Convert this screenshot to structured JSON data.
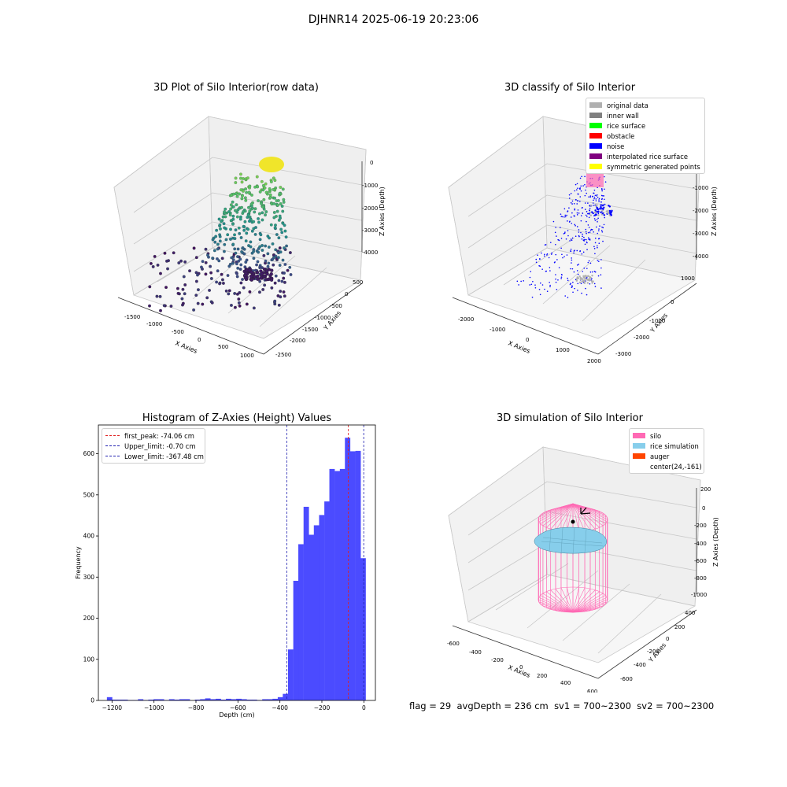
{
  "suptitle": "DJHNR14 2025-06-19 20:23:06",
  "status": {
    "flag_text": "flag = 29",
    "avg_depth_text": "avgDepth = 236 cm",
    "sv1_text": "sv1 = 700~2300",
    "sv2_text": "sv2 = 700~2300"
  },
  "colors": {
    "hist_bar": "#4b4bff",
    "peak_line": "#e02020",
    "limit_line": "#2020b0",
    "silo": "#ff69b4",
    "rice": "#87ceeb",
    "auger": "#ff4500"
  },
  "panel_raw": {
    "title": "3D Plot of Silo Interior(row data)",
    "xlabel": "X Axies",
    "ylabel": "Y Axies",
    "zlabel": "Z Axies (Depth)",
    "xticks": [
      "-1500",
      "-1000",
      "-500",
      "0",
      "500",
      "1000"
    ],
    "yticks": [
      "500",
      "0",
      "-500",
      "-1000",
      "-1500",
      "-2000",
      "-2500"
    ],
    "zticks": [
      "0",
      "-1000",
      "-2000",
      "-3000",
      "-4000"
    ]
  },
  "panel_classify": {
    "title": "3D classify of Silo Interior",
    "xlabel": "X Axies",
    "ylabel": "Y Axies",
    "zlabel": "Z Axies (Depth)",
    "xticks": [
      "-2000",
      "-1000",
      "0",
      "1000",
      "2000"
    ],
    "yticks": [
      "1000",
      "0",
      "-1000",
      "-2000",
      "-3000"
    ],
    "zticks": [
      "0",
      "-1000",
      "-2000",
      "-3000",
      "-4000"
    ],
    "legend": [
      {
        "label": "original data",
        "color": "#b0b0b0"
      },
      {
        "label": "inner wall",
        "color": "#808080"
      },
      {
        "label": "rice surface",
        "color": "#00ff00"
      },
      {
        "label": "obstacle",
        "color": "#ff0000"
      },
      {
        "label": "noise",
        "color": "#0000ff"
      },
      {
        "label": "interpolated rice surface",
        "color": "#800080"
      },
      {
        "label": "symmetric generated points",
        "color": "#ffff00"
      }
    ]
  },
  "panel_sim": {
    "title": "3D simulation of Silo Interior",
    "xlabel": "X Axies",
    "ylabel": "Y Axies",
    "zlabel": "Z Axies (Depth)",
    "xticks": [
      "-600",
      "-400",
      "-200",
      "0",
      "200",
      "400",
      "600"
    ],
    "yticks": [
      "400",
      "200",
      "0",
      "-200",
      "-400",
      "-600"
    ],
    "zticks": [
      "200",
      "0",
      "-200",
      "-400",
      "-600",
      "-800",
      "-1000"
    ],
    "legend": [
      {
        "label": "silo",
        "color": "#ff69b4"
      },
      {
        "label": "rice simulation",
        "color": "#87ceeb"
      },
      {
        "label": "auger",
        "color": "#ff4500"
      },
      {
        "label": "center(24,-161)",
        "color": ""
      }
    ]
  },
  "chart_data": {
    "type": "bar",
    "title": "Histogram of Z-Axies (Height) Values",
    "xlabel": "Depth (cm)",
    "ylabel": "Frequency",
    "xlim": [
      -1265,
      55
    ],
    "ylim": [
      0,
      670
    ],
    "xticks": [
      -1200,
      -1000,
      -800,
      -600,
      -400,
      -200,
      0
    ],
    "yticks": [
      0,
      100,
      200,
      300,
      400,
      500,
      600
    ],
    "bin_width": 24.6,
    "bins": [
      {
        "x": -1212,
        "count": 8
      },
      {
        "x": -1187,
        "count": 2
      },
      {
        "x": -1163,
        "count": 2
      },
      {
        "x": -1138,
        "count": 2
      },
      {
        "x": -1113,
        "count": 1
      },
      {
        "x": -1089,
        "count": 1
      },
      {
        "x": -1064,
        "count": 3
      },
      {
        "x": -1039,
        "count": 1
      },
      {
        "x": -1015,
        "count": 2
      },
      {
        "x": -990,
        "count": 3
      },
      {
        "x": -965,
        "count": 3
      },
      {
        "x": -941,
        "count": 1
      },
      {
        "x": -916,
        "count": 3
      },
      {
        "x": -891,
        "count": 2
      },
      {
        "x": -867,
        "count": 3
      },
      {
        "x": -842,
        "count": 3
      },
      {
        "x": -793,
        "count": 2
      },
      {
        "x": -768,
        "count": 3
      },
      {
        "x": -744,
        "count": 5
      },
      {
        "x": -719,
        "count": 3
      },
      {
        "x": -694,
        "count": 4
      },
      {
        "x": -670,
        "count": 2
      },
      {
        "x": -645,
        "count": 4
      },
      {
        "x": -620,
        "count": 3
      },
      {
        "x": -596,
        "count": 4
      },
      {
        "x": -571,
        "count": 3
      },
      {
        "x": -546,
        "count": 2
      },
      {
        "x": -522,
        "count": 2
      },
      {
        "x": -497,
        "count": 1
      },
      {
        "x": -472,
        "count": 3
      },
      {
        "x": -448,
        "count": 3
      },
      {
        "x": -423,
        "count": 4
      },
      {
        "x": -398,
        "count": 8
      },
      {
        "x": -374,
        "count": 16
      },
      {
        "x": -349,
        "count": 124
      },
      {
        "x": -324,
        "count": 291
      },
      {
        "x": -300,
        "count": 380
      },
      {
        "x": -275,
        "count": 471
      },
      {
        "x": -250,
        "count": 403
      },
      {
        "x": -226,
        "count": 426
      },
      {
        "x": -201,
        "count": 451
      },
      {
        "x": -176,
        "count": 484
      },
      {
        "x": -152,
        "count": 563
      },
      {
        "x": -127,
        "count": 558
      },
      {
        "x": -102,
        "count": 563
      },
      {
        "x": -78,
        "count": 639
      },
      {
        "x": -53,
        "count": 606
      },
      {
        "x": -28,
        "count": 607
      },
      {
        "x": -4,
        "count": 346
      }
    ],
    "vlines": [
      {
        "label": "first_peak: -74.06 cm",
        "x": -74.06,
        "color": "#e02020"
      },
      {
        "label": "Upper_limit: -0.70 cm",
        "x": -0.7,
        "color": "#2020b0"
      },
      {
        "label": "Lower_limit: -367.48 cm",
        "x": -367.48,
        "color": "#2020b0"
      }
    ]
  }
}
